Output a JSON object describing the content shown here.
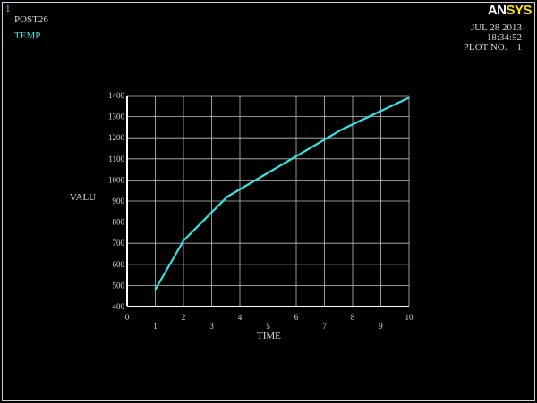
{
  "window_number": "1",
  "processor": "POST26",
  "variable_name": "TEMP",
  "logo": "ANSYS",
  "date": "JUL 28 2013",
  "time": "18:34:52",
  "plot_no": "PLOT NO.    1",
  "colors": {
    "series": "#33e6e6",
    "grid": "#bfbfbf",
    "axis": "#ffffff",
    "background": "#000000",
    "logo_sys": "#ffe800"
  },
  "chart_data": {
    "type": "line",
    "xlabel": "TIME",
    "ylabel": "VALU",
    "xlim": [
      0,
      10
    ],
    "ylim": [
      400,
      1400
    ],
    "grid": true,
    "xticks": [
      0,
      1,
      2,
      3,
      4,
      5,
      6,
      7,
      8,
      9,
      10
    ],
    "yticks": [
      400,
      500,
      600,
      700,
      800,
      900,
      1000,
      1100,
      1200,
      1300,
      1400
    ],
    "series": [
      {
        "x": [
          1,
          2,
          3.55,
          7.6,
          10
        ],
        "y": [
          480,
          712,
          920,
          1238,
          1390
        ]
      }
    ]
  }
}
